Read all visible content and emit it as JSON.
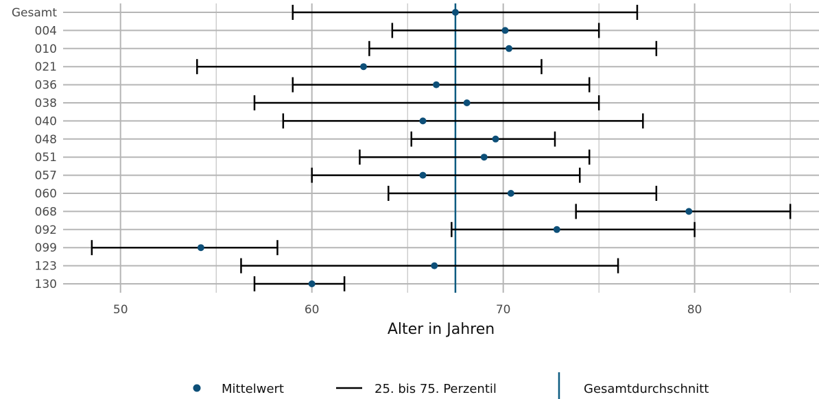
{
  "chart_data": {
    "type": "errorbar",
    "xlabel": "Alter in Jahren",
    "xlim": [
      47,
      86.5
    ],
    "x_ticks": [
      50,
      60,
      70,
      80
    ],
    "grid": true,
    "reference_line": {
      "label": "Gesamtdurchschnitt",
      "x": 67.5
    },
    "legend": {
      "position": "bottom",
      "mean_label": "Mittelwert",
      "range_label": "25. bis 75. Perzentil",
      "reference_label": "Gesamtdurchschnitt"
    },
    "categories": [
      "Gesamt",
      "004",
      "010",
      "021",
      "036",
      "038",
      "040",
      "048",
      "051",
      "057",
      "060",
      "068",
      "092",
      "099",
      "123",
      "130"
    ],
    "mean": [
      67.5,
      70.1,
      70.3,
      62.7,
      66.5,
      68.1,
      65.8,
      69.6,
      69.0,
      65.8,
      70.4,
      79.7,
      72.8,
      54.2,
      66.4,
      60.0
    ],
    "p25": [
      59.0,
      64.2,
      63.0,
      54.0,
      59.0,
      57.0,
      58.5,
      65.2,
      62.5,
      60.0,
      64.0,
      73.8,
      67.3,
      48.5,
      56.3,
      57.0
    ],
    "p75": [
      77.0,
      75.0,
      78.0,
      72.0,
      74.5,
      75.0,
      77.3,
      72.7,
      74.5,
      74.0,
      78.0,
      85.0,
      80.0,
      58.2,
      76.0,
      61.7
    ]
  },
  "colors": {
    "mean_point": "#0d4f78",
    "reference_line": "#0d5b80",
    "error_bar": "#000000",
    "grid": "#b5b5b5"
  }
}
